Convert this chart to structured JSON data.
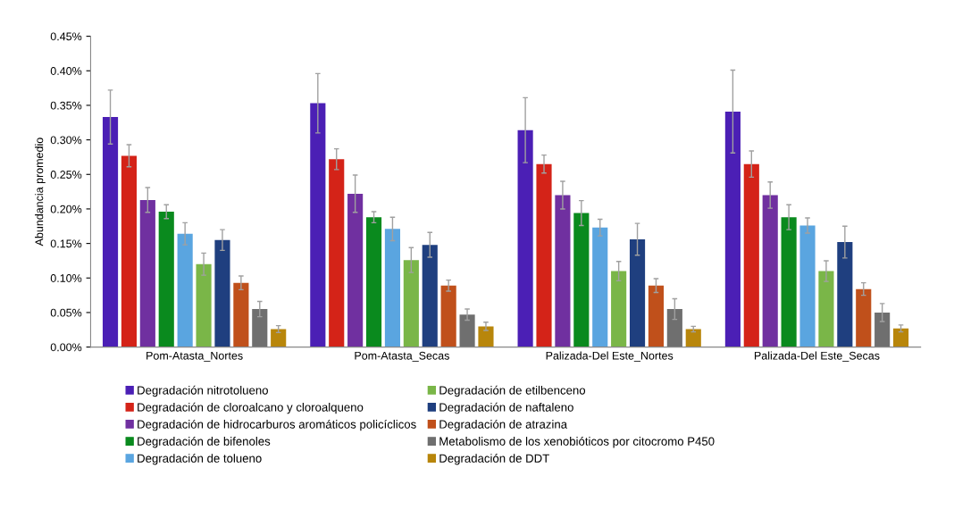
{
  "chart_data": {
    "type": "bar",
    "ylabel": "Abundancia promedio",
    "categories": [
      "Pom-Atasta_Nortes",
      "Pom-Atasta_Secas",
      "Palizada-Del Este_Nortes",
      "Palizada-Del Este_Secas"
    ],
    "ylim": [
      0,
      0.45
    ],
    "yticks": [
      {
        "value": 0,
        "label": "0.00%"
      },
      {
        "value": 0.05,
        "label": "0.05%"
      },
      {
        "value": 0.1,
        "label": "0.10%"
      },
      {
        "value": 0.15,
        "label": "0.15%"
      },
      {
        "value": 0.2,
        "label": "0.20%"
      },
      {
        "value": 0.25,
        "label": "0.25%"
      },
      {
        "value": 0.3,
        "label": "0.30%"
      },
      {
        "value": 0.35,
        "label": "0.35%"
      },
      {
        "value": 0.4,
        "label": "0.40%"
      },
      {
        "value": 0.45,
        "label": "0.45%"
      }
    ],
    "grid": false,
    "legend": "bottom",
    "series": [
      {
        "name": "Degradación nitrotolueno",
        "color": "#4b1fb5",
        "values": [
          0.333,
          0.353,
          0.314,
          0.341
        ],
        "errors": [
          0.039,
          0.043,
          0.047,
          0.06
        ]
      },
      {
        "name": "Degradación de cloroalcano y cloroalqueno",
        "color": "#d42318",
        "values": [
          0.277,
          0.272,
          0.265,
          0.265
        ],
        "errors": [
          0.016,
          0.015,
          0.013,
          0.019
        ]
      },
      {
        "name": "Degradación de hidrocarburos aromáticos policíclicos",
        "color": "#7030a0",
        "values": [
          0.213,
          0.222,
          0.22,
          0.22
        ],
        "errors": [
          0.018,
          0.027,
          0.02,
          0.019
        ]
      },
      {
        "name": "Degradación de bifenoles",
        "color": "#0a8a1e",
        "values": [
          0.196,
          0.188,
          0.194,
          0.188
        ],
        "errors": [
          0.01,
          0.008,
          0.018,
          0.018
        ]
      },
      {
        "name": "Degradación de tolueno",
        "color": "#5aa5e0",
        "values": [
          0.164,
          0.171,
          0.173,
          0.176
        ],
        "errors": [
          0.016,
          0.017,
          0.012,
          0.011
        ]
      },
      {
        "name": "Degradación de etilbenceno",
        "color": "#7ab648",
        "values": [
          0.12,
          0.126,
          0.11,
          0.11
        ],
        "errors": [
          0.016,
          0.018,
          0.014,
          0.015
        ]
      },
      {
        "name": "Degradación de naftaleno",
        "color": "#1f3f7f",
        "values": [
          0.155,
          0.148,
          0.156,
          0.152
        ],
        "errors": [
          0.015,
          0.018,
          0.023,
          0.023
        ]
      },
      {
        "name": "Degradación de atrazina",
        "color": "#c0501b",
        "values": [
          0.093,
          0.089,
          0.089,
          0.084
        ],
        "errors": [
          0.01,
          0.008,
          0.01,
          0.009
        ]
      },
      {
        "name": "Metabolismo de los xenobióticos por citocromo P450",
        "color": "#6f6f6f",
        "values": [
          0.055,
          0.047,
          0.055,
          0.05
        ],
        "errors": [
          0.011,
          0.008,
          0.015,
          0.013
        ]
      },
      {
        "name": "Degradación de DDT",
        "color": "#b8860b",
        "values": [
          0.026,
          0.03,
          0.026,
          0.027
        ],
        "errors": [
          0.005,
          0.006,
          0.004,
          0.005
        ]
      }
    ]
  }
}
